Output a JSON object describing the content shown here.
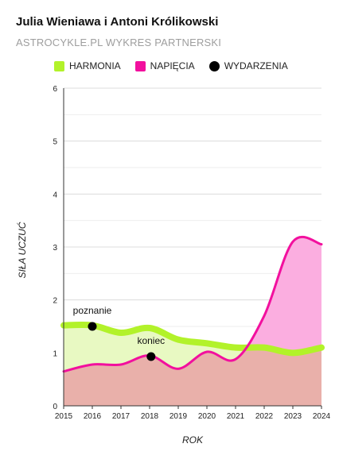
{
  "header": {
    "title": "Julia Wieniawa i Antoni Królikowski",
    "subtitle": "ASTROCYKLE.PL WYKRES PARTNERSKI"
  },
  "colors": {
    "harmony_line": "#b2f22a",
    "harmony_fill": "#e8f9c2",
    "tension_line": "#f2109e",
    "tension_fill": "#fbaee0",
    "overlap_fill": "#e9b0aa",
    "events": "#000000"
  },
  "legend": {
    "items": [
      {
        "label": "HARMONIA",
        "marker": "rect",
        "color": "#b2f22a"
      },
      {
        "label": "NAPIĘCIA",
        "marker": "rect",
        "color": "#f2109e"
      },
      {
        "label": "WYDARZENIA",
        "marker": "dot",
        "color": "#000000"
      }
    ]
  },
  "chart_data": {
    "type": "area",
    "title": "Julia Wieniawa i Antoni Królikowski",
    "subtitle": "ASTROCYKLE.PL WYKRES PARTNERSKI",
    "xlabel": "ROK",
    "ylabel": "SIŁA UCZUĆ",
    "xlim": [
      2015,
      2024
    ],
    "ylim": [
      0,
      6
    ],
    "x_ticks": [
      "2015",
      "2016",
      "2017",
      "2018",
      "2019",
      "2020",
      "2021",
      "2022",
      "2023",
      "2024"
    ],
    "y_ticks": [
      "0",
      "1",
      "2",
      "3",
      "4",
      "5",
      "6"
    ],
    "grid": true,
    "legend_position": "top-left",
    "series": [
      {
        "name": "HARMONIA",
        "x": [
          2015,
          2016,
          2017,
          2018,
          2019,
          2020,
          2021,
          2022,
          2023,
          2024
        ],
        "y": [
          1.52,
          1.52,
          1.38,
          1.47,
          1.25,
          1.18,
          1.1,
          1.1,
          1.0,
          1.1
        ]
      },
      {
        "name": "NAPIĘCIA",
        "x": [
          2015,
          2016,
          2017,
          2018,
          2019,
          2020,
          2021,
          2022,
          2023,
          2024
        ],
        "y": [
          0.65,
          0.78,
          0.78,
          0.95,
          0.7,
          1.02,
          0.88,
          1.7,
          3.1,
          3.05
        ]
      }
    ],
    "events": [
      {
        "label": "poznanie",
        "x": 2016.0,
        "y": 1.5
      },
      {
        "label": "koniec",
        "x": 2018.05,
        "y": 0.93
      }
    ]
  }
}
